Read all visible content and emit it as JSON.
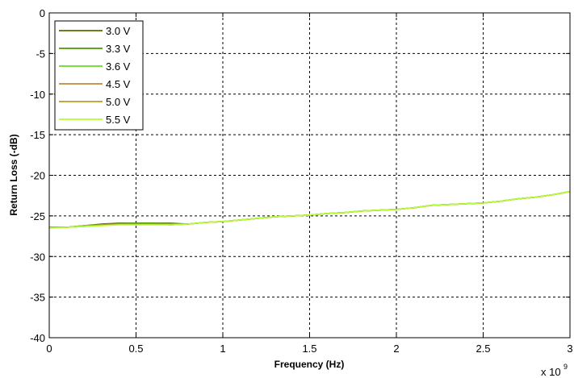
{
  "chart_data": {
    "type": "line",
    "title": "",
    "xlabel": "Frequency (Hz)",
    "ylabel": "Return Loss (-dB)",
    "x_multiplier_label": "x 10",
    "x_multiplier_exponent": "9",
    "xlim": [
      0,
      3
    ],
    "ylim": [
      -40,
      0
    ],
    "x_ticks": [
      "0",
      "0.5",
      "1",
      "1.5",
      "2",
      "2.5",
      "3"
    ],
    "y_ticks": [
      "0",
      "-5",
      "-10",
      "-15",
      "-20",
      "-25",
      "-30",
      "-35",
      "-40"
    ],
    "grid": true,
    "grid_style": "dashed",
    "legend_position": "top-left",
    "x": [
      0,
      0.1,
      0.2,
      0.3,
      0.4,
      0.5,
      0.6,
      0.7,
      0.8,
      0.9,
      1.0,
      1.1,
      1.2,
      1.3,
      1.4,
      1.5,
      1.6,
      1.7,
      1.8,
      1.9,
      2.0,
      2.1,
      2.2,
      2.3,
      2.4,
      2.5,
      2.6,
      2.7,
      2.8,
      2.9,
      3.0
    ],
    "series": [
      {
        "name": "3.0 V",
        "color": "#556b00",
        "values": [
          -26.4,
          -26.4,
          -26.2,
          -26.0,
          -25.9,
          -25.9,
          -25.9,
          -25.9,
          -26.0,
          -25.8,
          -25.7,
          -25.5,
          -25.3,
          -25.1,
          -25.0,
          -24.9,
          -24.7,
          -24.6,
          -24.4,
          -24.3,
          -24.2,
          -24.0,
          -23.7,
          -23.6,
          -23.5,
          -23.4,
          -23.2,
          -22.9,
          -22.7,
          -22.4,
          -22.0
        ]
      },
      {
        "name": "3.3 V",
        "color": "#4a9a00",
        "values": [
          -26.4,
          -26.4,
          -26.2,
          -26.1,
          -26.0,
          -25.9,
          -25.9,
          -26.0,
          -26.0,
          -25.8,
          -25.7,
          -25.5,
          -25.3,
          -25.1,
          -25.0,
          -24.9,
          -24.7,
          -24.6,
          -24.4,
          -24.3,
          -24.2,
          -24.0,
          -23.7,
          -23.6,
          -23.5,
          -23.4,
          -23.2,
          -22.9,
          -22.7,
          -22.4,
          -22.0
        ]
      },
      {
        "name": "3.6 V",
        "color": "#66dd22",
        "values": [
          -26.4,
          -26.4,
          -26.2,
          -26.1,
          -26.0,
          -26.0,
          -26.0,
          -26.0,
          -26.0,
          -25.8,
          -25.7,
          -25.5,
          -25.3,
          -25.1,
          -25.0,
          -24.9,
          -24.7,
          -24.6,
          -24.4,
          -24.3,
          -24.2,
          -24.0,
          -23.7,
          -23.6,
          -23.5,
          -23.4,
          -23.2,
          -22.9,
          -22.7,
          -22.4,
          -22.0
        ]
      },
      {
        "name": "4.5 V",
        "color": "#c08a3a",
        "values": [
          -26.4,
          -26.4,
          -26.3,
          -26.1,
          -26.0,
          -26.0,
          -26.0,
          -26.1,
          -26.0,
          -25.8,
          -25.7,
          -25.5,
          -25.3,
          -25.1,
          -25.0,
          -24.9,
          -24.7,
          -24.6,
          -24.4,
          -24.3,
          -24.2,
          -24.0,
          -23.7,
          -23.6,
          -23.5,
          -23.4,
          -23.2,
          -22.9,
          -22.7,
          -22.4,
          -22.0
        ]
      },
      {
        "name": "5.0 V",
        "color": "#b5a020",
        "values": [
          -26.4,
          -26.4,
          -26.3,
          -26.1,
          -26.0,
          -26.0,
          -26.0,
          -26.1,
          -26.0,
          -25.8,
          -25.7,
          -25.5,
          -25.3,
          -25.1,
          -25.0,
          -24.9,
          -24.7,
          -24.6,
          -24.4,
          -24.3,
          -24.2,
          -24.0,
          -23.7,
          -23.6,
          -23.5,
          -23.4,
          -23.2,
          -22.9,
          -22.7,
          -22.4,
          -22.0
        ]
      },
      {
        "name": "5.5 V",
        "color": "#b4ff3a",
        "values": [
          -26.5,
          -26.4,
          -26.3,
          -26.2,
          -26.1,
          -26.1,
          -26.1,
          -26.1,
          -26.0,
          -25.8,
          -25.7,
          -25.5,
          -25.3,
          -25.1,
          -25.0,
          -24.9,
          -24.7,
          -24.6,
          -24.4,
          -24.3,
          -24.2,
          -24.0,
          -23.7,
          -23.6,
          -23.5,
          -23.4,
          -23.2,
          -22.9,
          -22.7,
          -22.4,
          -22.0
        ]
      }
    ]
  }
}
